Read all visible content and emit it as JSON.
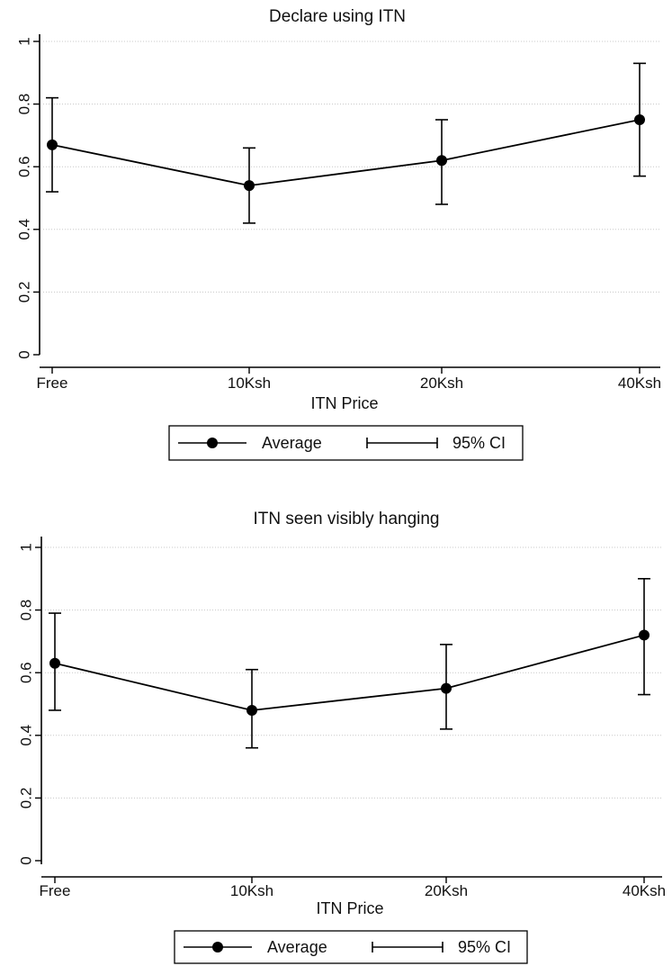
{
  "chart_data": [
    {
      "type": "line",
      "title": "Declare using ITN",
      "xlabel": "ITN Price",
      "ylabel": "",
      "categories": [
        "Free",
        "10Ksh",
        "20Ksh",
        "40Ksh"
      ],
      "yticks": [
        "0",
        "0.2",
        "0.4",
        "0.6",
        "0.8",
        "1"
      ],
      "ylim": [
        0,
        1
      ],
      "grid": true,
      "series": [
        {
          "name": "Average",
          "values": [
            0.67,
            0.54,
            0.62,
            0.75
          ]
        }
      ],
      "ci": {
        "name": "95% CI",
        "low": [
          0.52,
          0.42,
          0.48,
          0.57
        ],
        "high": [
          0.82,
          0.66,
          0.75,
          0.93
        ]
      },
      "legend": {
        "placement": "bottom",
        "items": [
          "Average",
          "95% CI"
        ]
      }
    },
    {
      "type": "line",
      "title": "ITN seen visibly hanging",
      "xlabel": "ITN Price",
      "ylabel": "",
      "categories": [
        "Free",
        "10Ksh",
        "20Ksh",
        "40Ksh"
      ],
      "yticks": [
        "0",
        "0.2",
        "0.4",
        "0.6",
        "0.8",
        "1"
      ],
      "ylim": [
        0,
        1
      ],
      "grid": true,
      "series": [
        {
          "name": "Average",
          "values": [
            0.63,
            0.48,
            0.55,
            0.72
          ]
        }
      ],
      "ci": {
        "name": "95% CI",
        "low": [
          0.48,
          0.36,
          0.42,
          0.53
        ],
        "high": [
          0.79,
          0.61,
          0.69,
          0.9
        ]
      },
      "legend": {
        "placement": "bottom",
        "items": [
          "Average",
          "95% CI"
        ]
      }
    }
  ]
}
